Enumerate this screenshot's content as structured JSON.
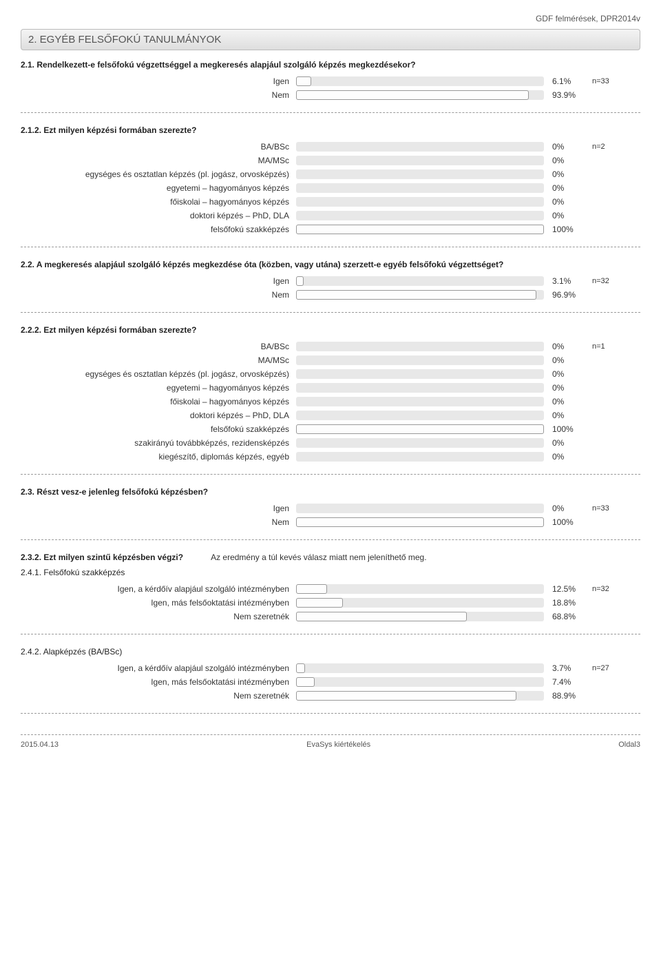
{
  "header_right": "GDF felmérések, DPR2014v",
  "section_title": "2. EGYÉB FELSŐFOKÚ TANULMÁNYOK",
  "bar_track_width": 360,
  "colors": {
    "track": "#e8e8e8",
    "fill_bg": "#fdfdfd",
    "fill_border": "#999999"
  },
  "blocks": [
    {
      "question": "2.1. Rendelkezett-e felsőfokú végzettséggel a megkeresés alapjául szolgáló képzés megkezdésekor?",
      "rows": [
        {
          "label": "Igen",
          "pct": 6.1,
          "value": "6.1%",
          "n": "n=33"
        },
        {
          "label": "Nem",
          "pct": 93.9,
          "value": "93.9%",
          "n": ""
        }
      ]
    },
    {
      "question": "2.1.2. Ezt milyen képzési formában szerezte?",
      "rows": [
        {
          "label": "BA/BSc",
          "pct": 0,
          "value": "0%",
          "n": "n=2"
        },
        {
          "label": "MA/MSc",
          "pct": 0,
          "value": "0%",
          "n": ""
        },
        {
          "label": "egységes és osztatlan képzés (pl. jogász, orvosképzés)",
          "pct": 0,
          "value": "0%",
          "n": ""
        },
        {
          "label": "egyetemi – hagyományos képzés",
          "pct": 0,
          "value": "0%",
          "n": ""
        },
        {
          "label": "főiskolai – hagyományos képzés",
          "pct": 0,
          "value": "0%",
          "n": ""
        },
        {
          "label": "doktori képzés – PhD, DLA",
          "pct": 0,
          "value": "0%",
          "n": ""
        },
        {
          "label": "felsőfokú szakképzés",
          "pct": 100,
          "value": "100%",
          "n": ""
        }
      ]
    },
    {
      "question": "2.2. A megkeresés alapjául szolgáló képzés megkezdése óta (közben, vagy utána) szerzett-e egyéb felsőfokú végzettséget?",
      "rows": [
        {
          "label": "Igen",
          "pct": 3.1,
          "value": "3.1%",
          "n": "n=32"
        },
        {
          "label": "Nem",
          "pct": 96.9,
          "value": "96.9%",
          "n": ""
        }
      ]
    },
    {
      "question": "2.2.2. Ezt milyen képzési formában szerezte?",
      "rows": [
        {
          "label": "BA/BSc",
          "pct": 0,
          "value": "0%",
          "n": "n=1"
        },
        {
          "label": "MA/MSc",
          "pct": 0,
          "value": "0%",
          "n": ""
        },
        {
          "label": "egységes és osztatlan képzés (pl. jogász, orvosképzés)",
          "pct": 0,
          "value": "0%",
          "n": ""
        },
        {
          "label": "egyetemi – hagyományos képzés",
          "pct": 0,
          "value": "0%",
          "n": ""
        },
        {
          "label": "főiskolai – hagyományos képzés",
          "pct": 0,
          "value": "0%",
          "n": ""
        },
        {
          "label": "doktori képzés – PhD, DLA",
          "pct": 0,
          "value": "0%",
          "n": ""
        },
        {
          "label": "felsőfokú szakképzés",
          "pct": 100,
          "value": "100%",
          "n": ""
        },
        {
          "label": "szakirányú továbbképzés, rezidensképzés",
          "pct": 0,
          "value": "0%",
          "n": ""
        },
        {
          "label": "kiegészítő, diplomás képzés, egyéb",
          "pct": 0,
          "value": "0%",
          "n": ""
        }
      ]
    },
    {
      "question": "2.3. Részt vesz-e jelenleg felsőfokú képzésben?",
      "rows": [
        {
          "label": "Igen",
          "pct": 0,
          "value": "0%",
          "n": "n=33"
        },
        {
          "label": "Nem",
          "pct": 100,
          "value": "100%",
          "n": ""
        }
      ]
    }
  ],
  "note_block": {
    "question": "2.3.2. Ezt milyen szintű képzésben végzi?",
    "note": "Az eredmény a túl kevés válasz miatt nem jeleníthető meg."
  },
  "sub_blocks": [
    {
      "title": "2.4.1. Felsőfokú szakképzés",
      "rows": [
        {
          "label": "Igen, a kérdőív alapjául szolgáló intézményben",
          "pct": 12.5,
          "value": "12.5%",
          "n": "n=32"
        },
        {
          "label": "Igen, más felsőoktatási intézményben",
          "pct": 18.8,
          "value": "18.8%",
          "n": ""
        },
        {
          "label": "Nem szeretnék",
          "pct": 68.8,
          "value": "68.8%",
          "n": ""
        }
      ]
    },
    {
      "title": "2.4.2. Alapképzés (BA/BSc)",
      "rows": [
        {
          "label": "Igen, a kérdőív alapjául szolgáló intézményben",
          "pct": 3.7,
          "value": "3.7%",
          "n": "n=27"
        },
        {
          "label": "Igen, más felsőoktatási intézményben",
          "pct": 7.4,
          "value": "7.4%",
          "n": ""
        },
        {
          "label": "Nem szeretnék",
          "pct": 88.9,
          "value": "88.9%",
          "n": ""
        }
      ]
    }
  ],
  "footer": {
    "left": "2015.04.13",
    "center": "EvaSys kiértékelés",
    "right": "Oldal3"
  }
}
